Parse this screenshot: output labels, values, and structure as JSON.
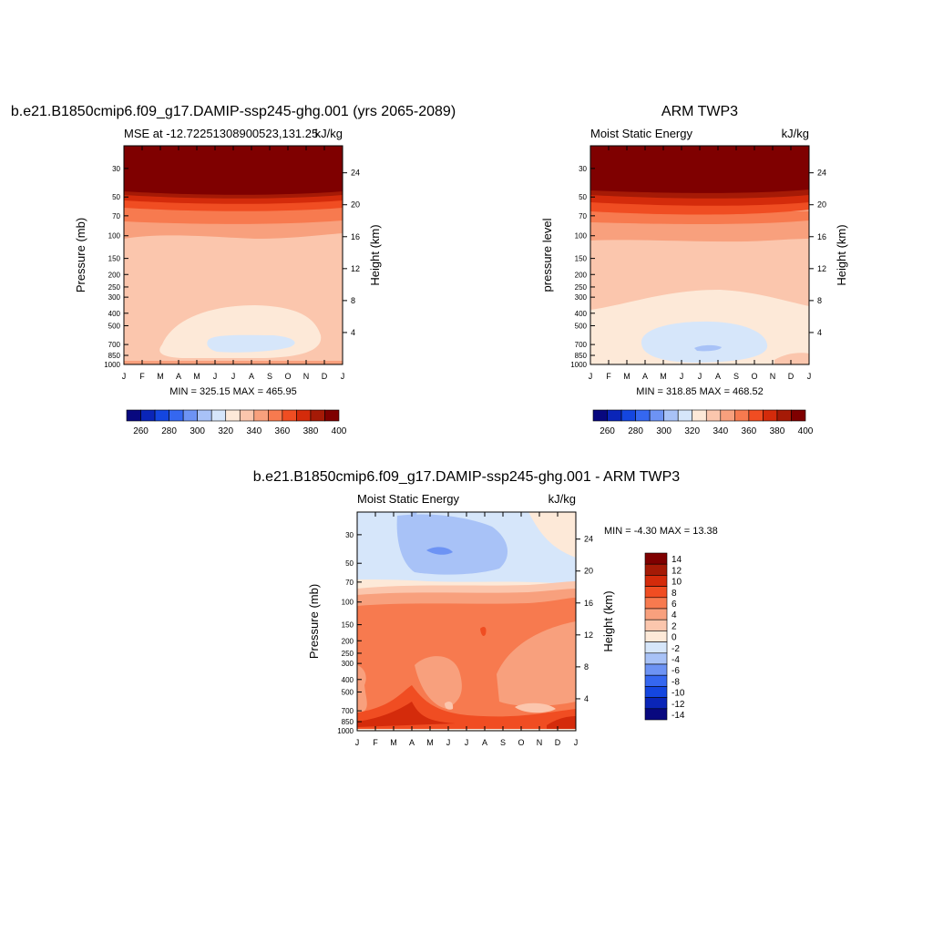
{
  "months": [
    "J",
    "F",
    "M",
    "A",
    "M",
    "J",
    "J",
    "A",
    "S",
    "O",
    "N",
    "D",
    "J"
  ],
  "pressure_ticks": [
    30,
    50,
    70,
    100,
    150,
    200,
    250,
    300,
    400,
    500,
    700,
    850,
    1000
  ],
  "height_ticks": [
    24,
    20,
    16,
    12,
    8,
    4
  ],
  "abs_colorbar": {
    "labels": [
      "260",
      "280",
      "300",
      "320",
      "340",
      "360",
      "380",
      "400"
    ],
    "colors": [
      "#08087f",
      "#0a25b8",
      "#1446e0",
      "#3567f0",
      "#6d93f4",
      "#a8c2f7",
      "#d6e6fa",
      "#fde9d8",
      "#fbc6ad",
      "#f8a07d",
      "#f77a4f",
      "#f04d22",
      "#d42b0b",
      "#a51a06",
      "#7f0000"
    ]
  },
  "diff_colorbar": {
    "labels": [
      "14",
      "12",
      "10",
      "8",
      "6",
      "4",
      "2",
      "0",
      "-2",
      "-4",
      "-6",
      "-8",
      "-10",
      "-12",
      "-14"
    ],
    "colors": [
      "#7f0000",
      "#a51a06",
      "#d42b0b",
      "#f04d22",
      "#f77a4f",
      "#f8a07d",
      "#fbc6ad",
      "#fde9d8",
      "#d6e6fa",
      "#a8c2f7",
      "#6d93f4",
      "#3567f0",
      "#1446e0",
      "#0a25b8",
      "#08087f"
    ]
  },
  "chart_data": [
    {
      "type": "heatmap",
      "title": "b.e21.B1850cmip6.f09_g17.DAMIP-ssp245-ghg.001 (yrs 2065-2089)",
      "subtitle_left": "MSE at -12.72251308900523,131.25",
      "subtitle_right": "kJ/kg",
      "xlabel": "",
      "ylabel": "Pressure (mb)",
      "ylabel_right": "Height (km)",
      "min_max": "MIN = 325.15 MAX = 465.95",
      "x": [
        "J",
        "F",
        "M",
        "A",
        "M",
        "J",
        "J",
        "A",
        "S",
        "O",
        "N",
        "D",
        "J"
      ],
      "y_log_pressure": true,
      "ylim": [
        1000,
        20
      ],
      "levels": [
        260,
        270,
        280,
        290,
        300,
        310,
        320,
        330,
        340,
        350,
        360,
        370,
        380,
        390,
        400
      ]
    },
    {
      "type": "heatmap",
      "title": "ARM TWP3",
      "subtitle_left": "Moist Static Energy",
      "subtitle_right": "kJ/kg",
      "xlabel": "",
      "ylabel": "pressure level",
      "ylabel_right": "Height (km)",
      "min_max": "MIN = 318.85 MAX = 468.52",
      "x": [
        "J",
        "F",
        "M",
        "A",
        "M",
        "J",
        "J",
        "A",
        "S",
        "O",
        "N",
        "D",
        "J"
      ],
      "y_log_pressure": true,
      "ylim": [
        1000,
        20
      ],
      "levels": [
        260,
        270,
        280,
        290,
        300,
        310,
        320,
        330,
        340,
        350,
        360,
        370,
        380,
        390,
        400
      ]
    },
    {
      "type": "heatmap",
      "title": "b.e21.B1850cmip6.f09_g17.DAMIP-ssp245-ghg.001 - ARM TWP3",
      "subtitle_left": "Moist Static Energy",
      "subtitle_right": "kJ/kg",
      "xlabel": "",
      "ylabel": "Pressure (mb)",
      "ylabel_right": "Height (km)",
      "min_max": "MIN =  -4.30 MAX =  13.38",
      "x": [
        "J",
        "F",
        "M",
        "A",
        "M",
        "J",
        "J",
        "A",
        "S",
        "O",
        "N",
        "D",
        "J"
      ],
      "y_log_pressure": true,
      "ylim": [
        1000,
        20
      ],
      "levels": [
        -14,
        -12,
        -10,
        -8,
        -6,
        -4,
        -2,
        0,
        2,
        4,
        6,
        8,
        10,
        12,
        14
      ]
    }
  ]
}
